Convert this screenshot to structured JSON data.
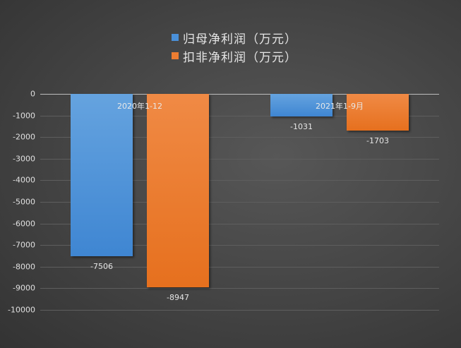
{
  "chart_data": {
    "type": "bar",
    "title": "",
    "categories": [
      "2020年1-12",
      "2021年1-9月"
    ],
    "series": [
      {
        "name": "归母净利润（万元）",
        "color": "#4a90d9",
        "values": [
          -7506,
          -1031
        ]
      },
      {
        "name": "扣非净利润（万元）",
        "color": "#ed7d31",
        "values": [
          -8947,
          -1703
        ]
      }
    ],
    "xlabel": "",
    "ylabel": "",
    "ylim": [
      -10000,
      0
    ],
    "yticks": [
      "0",
      "-1000",
      "-2000",
      "-3000",
      "-4000",
      "-5000",
      "-6000",
      "-7000",
      "-8000",
      "-9000",
      "-10000"
    ],
    "grid": true,
    "legend_position": "top",
    "data_labels": [
      "-7506",
      "-8947",
      "-1031",
      "-1703"
    ]
  },
  "legend": {
    "items": [
      {
        "label": "归母净利润（万元）",
        "color": "#4a90d9"
      },
      {
        "label": "扣非净利润（万元）",
        "color": "#ed7d31"
      }
    ]
  }
}
